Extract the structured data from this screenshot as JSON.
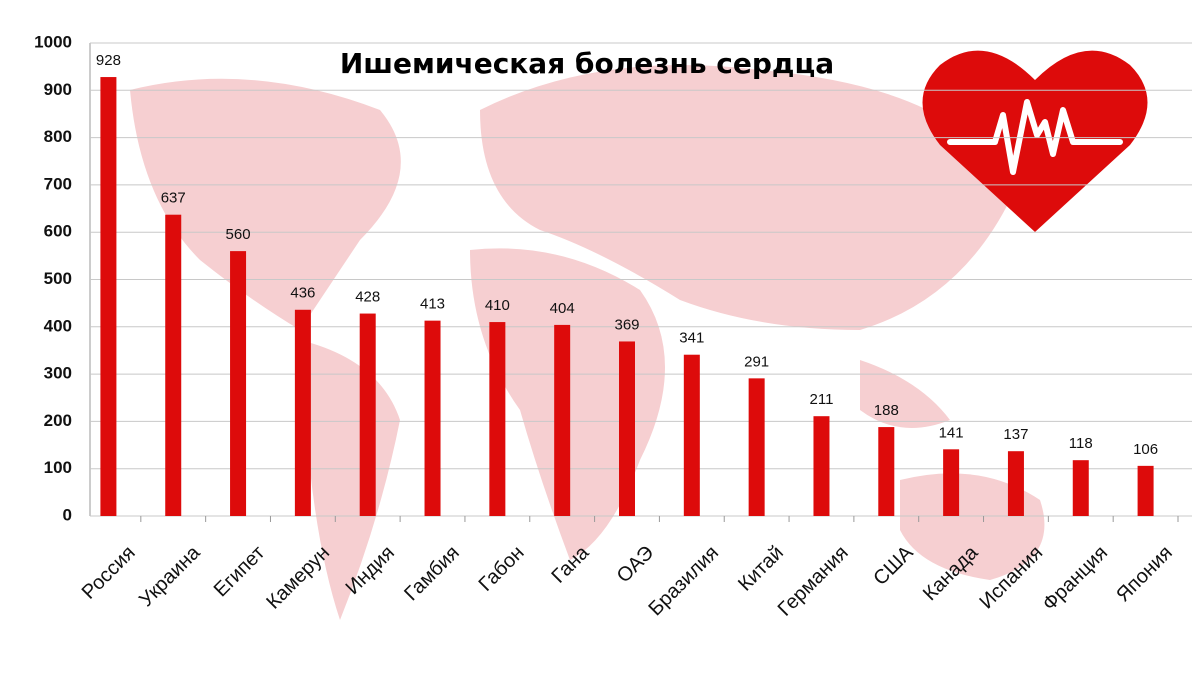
{
  "chart_data": {
    "type": "bar",
    "title": "Ишемическая болезнь сердца",
    "categories": [
      "Россия",
      "Украина",
      "Египет",
      "Камерун",
      "Индия",
      "Гамбия",
      "Габон",
      "Гана",
      "ОАЭ",
      "Бразилия",
      "Китай",
      "Германия",
      "США",
      "Канада",
      "Испания",
      "Франция",
      "Япония"
    ],
    "values": [
      928,
      637,
      560,
      436,
      428,
      413,
      410,
      404,
      369,
      341,
      291,
      211,
      188,
      141,
      137,
      118,
      106
    ],
    "color": "#dd0b0b",
    "ylim": [
      0,
      1000
    ],
    "yticks": [
      0,
      100,
      200,
      300,
      400,
      500,
      600,
      700,
      800,
      900,
      1000
    ],
    "grid": true
  }
}
